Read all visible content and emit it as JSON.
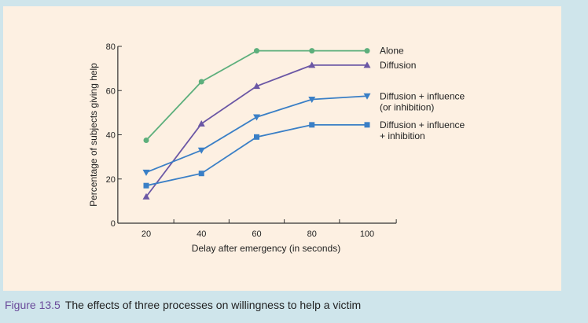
{
  "chart_data": {
    "type": "line",
    "xlabel": "Delay after emergency (in seconds)",
    "ylabel": "Percentage of subjects giving help",
    "x": [
      20,
      40,
      60,
      80,
      100
    ],
    "xlim": [
      10,
      110
    ],
    "ylim": [
      0,
      80
    ],
    "xticks": [
      20,
      40,
      60,
      80,
      100
    ],
    "yticks": [
      0,
      20,
      40,
      60,
      80
    ],
    "grid": false,
    "legend_placement": "right",
    "series": [
      {
        "name": "Alone",
        "marker": "circle",
        "color": "#5daf7c",
        "values": [
          37.5,
          64,
          78,
          78,
          78
        ]
      },
      {
        "name": "Diffusion",
        "marker": "triangle-up",
        "color": "#6b57a5",
        "values": [
          12,
          45,
          62,
          71.5,
          71.5
        ]
      },
      {
        "name": "Diffusion + influence (or inhibition)",
        "label_lines": [
          "Diffusion + influence",
          "(or inhibition)"
        ],
        "marker": "triangle-down",
        "color": "#3a7fc6",
        "values": [
          23,
          33,
          48,
          56,
          57.5
        ]
      },
      {
        "name": "Diffusion + influence + inhibition",
        "label_lines": [
          "Diffusion + influence",
          "+ inhibition"
        ],
        "marker": "square",
        "color": "#3a7fc6",
        "values": [
          17,
          22.5,
          39,
          44.5,
          44.5
        ]
      }
    ]
  },
  "caption": {
    "number": "Figure 13.5",
    "text": "The effects of three processes on willingness to help a victim"
  }
}
